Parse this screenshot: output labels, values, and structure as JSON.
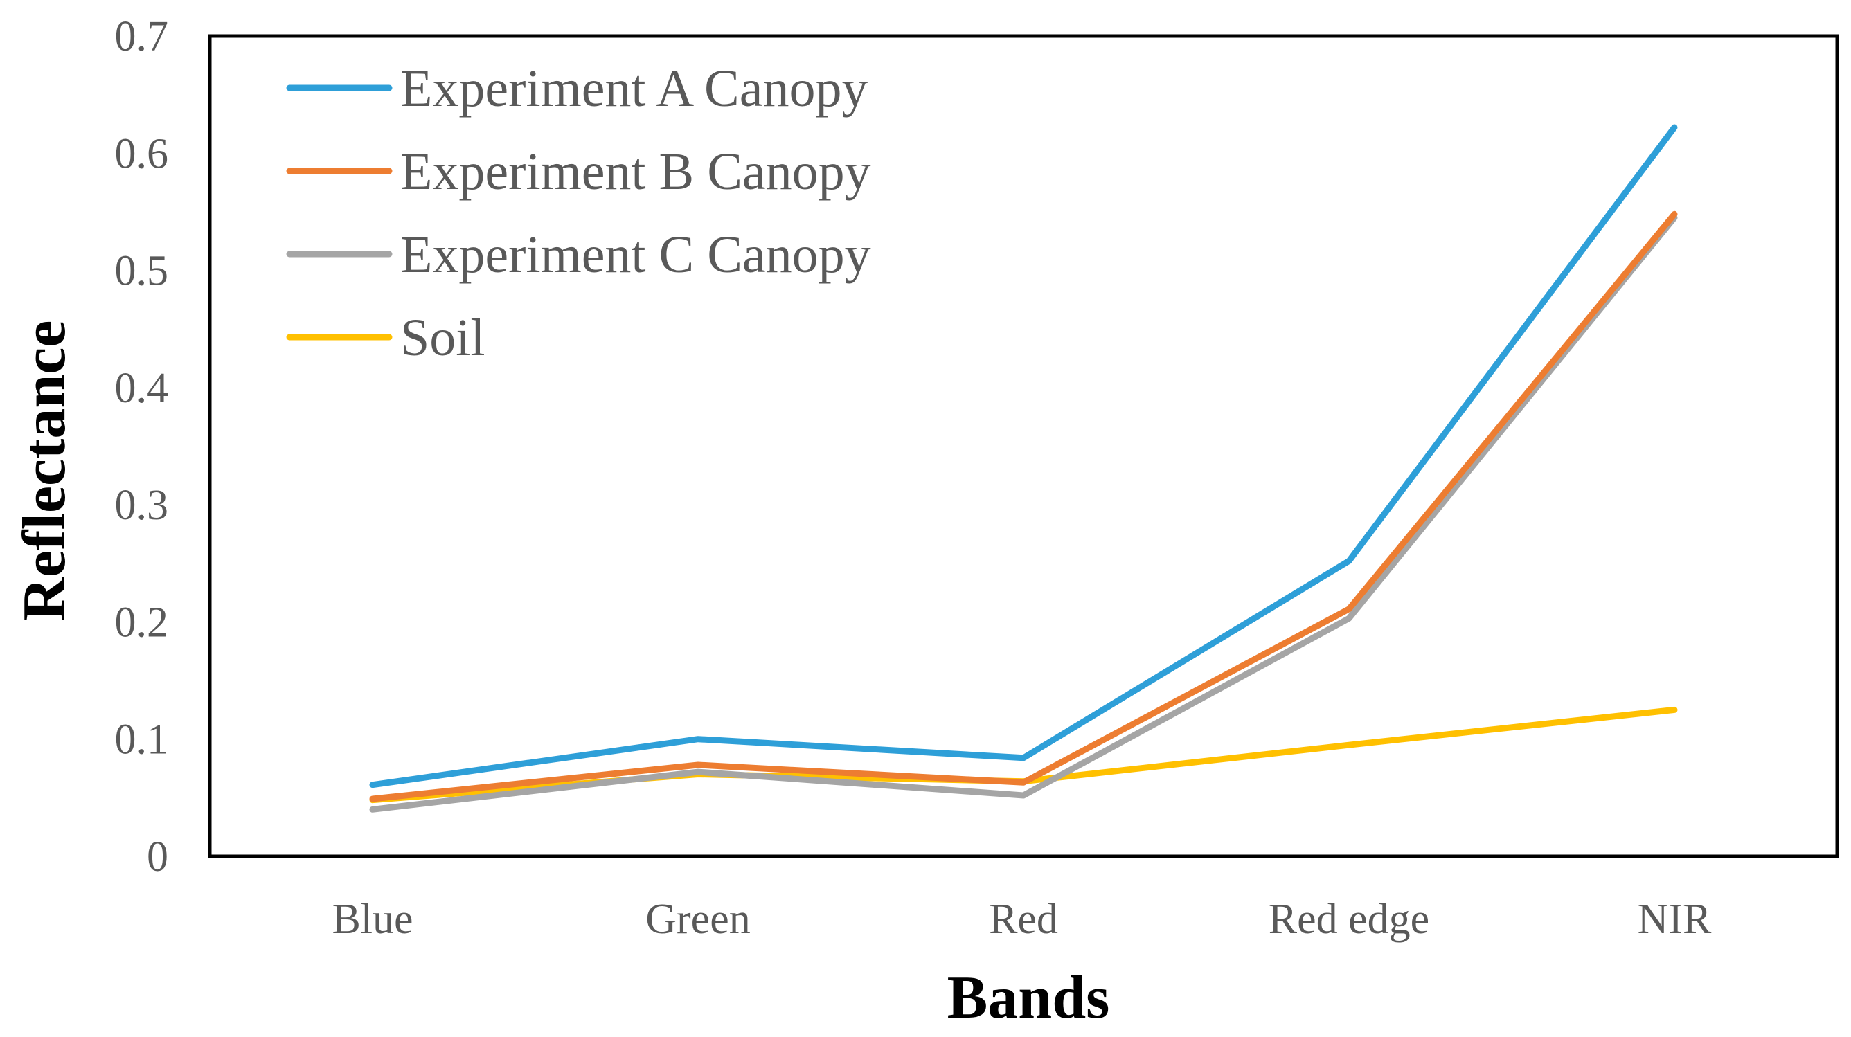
{
  "chart_data": {
    "type": "line",
    "title": "",
    "xlabel": "Bands",
    "ylabel": "Reflectance",
    "categories": [
      "Blue",
      "Green",
      "Red",
      "Red edge",
      "NIR"
    ],
    "ylim": [
      0,
      0.7
    ],
    "yticks": [
      0,
      0.1,
      0.2,
      0.3,
      0.4,
      0.5,
      0.6,
      0.7
    ],
    "ytick_labels": [
      "0",
      "0.1",
      "0.2",
      "0.3",
      "0.4",
      "0.5",
      "0.6",
      "0.7"
    ],
    "grid": false,
    "legend_position": "top-left",
    "series": [
      {
        "name": "Experiment A Canopy",
        "color": "#2E9FD8",
        "values": [
          0.061,
          0.1,
          0.084,
          0.252,
          0.622
        ]
      },
      {
        "name": "Experiment B Canopy",
        "color": "#ED7D31",
        "values": [
          0.049,
          0.078,
          0.063,
          0.211,
          0.548
        ]
      },
      {
        "name": "Experiment C Canopy",
        "color": "#A5A5A5",
        "values": [
          0.04,
          0.072,
          0.052,
          0.203,
          0.545
        ]
      },
      {
        "name": "Soil",
        "color": "#FFC000",
        "values": [
          0.048,
          0.07,
          0.064,
          0.095,
          0.125
        ]
      }
    ]
  }
}
